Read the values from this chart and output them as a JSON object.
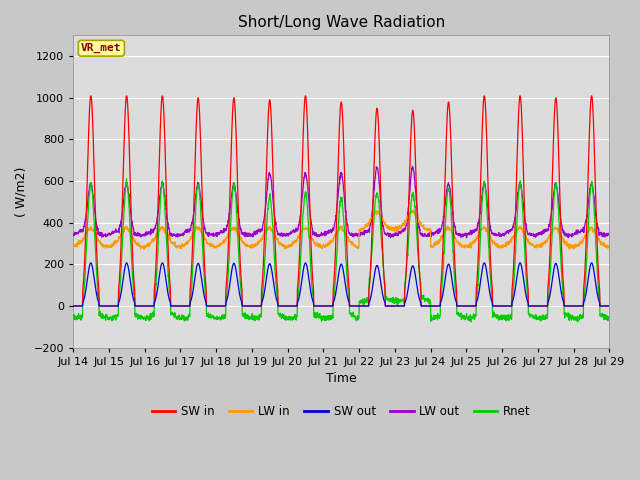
{
  "title": "Short/Long Wave Radiation",
  "ylabel": "( W/m2)",
  "xlabel": "Time",
  "site_label": "VR_met",
  "ylim": [
    -200,
    1300
  ],
  "xtick_labels": [
    "Jul 14",
    "Jul 15",
    "Jul 16",
    "Jul 17",
    "Jul 18",
    "Jul 19",
    "Jul 20",
    "Jul 21",
    "Jul 22",
    "Jul 23",
    "Jul 24",
    "Jul 25",
    "Jul 26",
    "Jul 27",
    "Jul 28",
    "Jul 29"
  ],
  "colors": {
    "SW_in": "#ff0000",
    "LW_in": "#ff9900",
    "SW_out": "#0000dd",
    "LW_out": "#9900cc",
    "Rnet": "#00cc00"
  },
  "plot_bg_color": "#dcdcdc",
  "fig_bg_color": "#c8c8c8",
  "title_fontsize": 11,
  "label_fontsize": 9,
  "tick_fontsize": 8
}
